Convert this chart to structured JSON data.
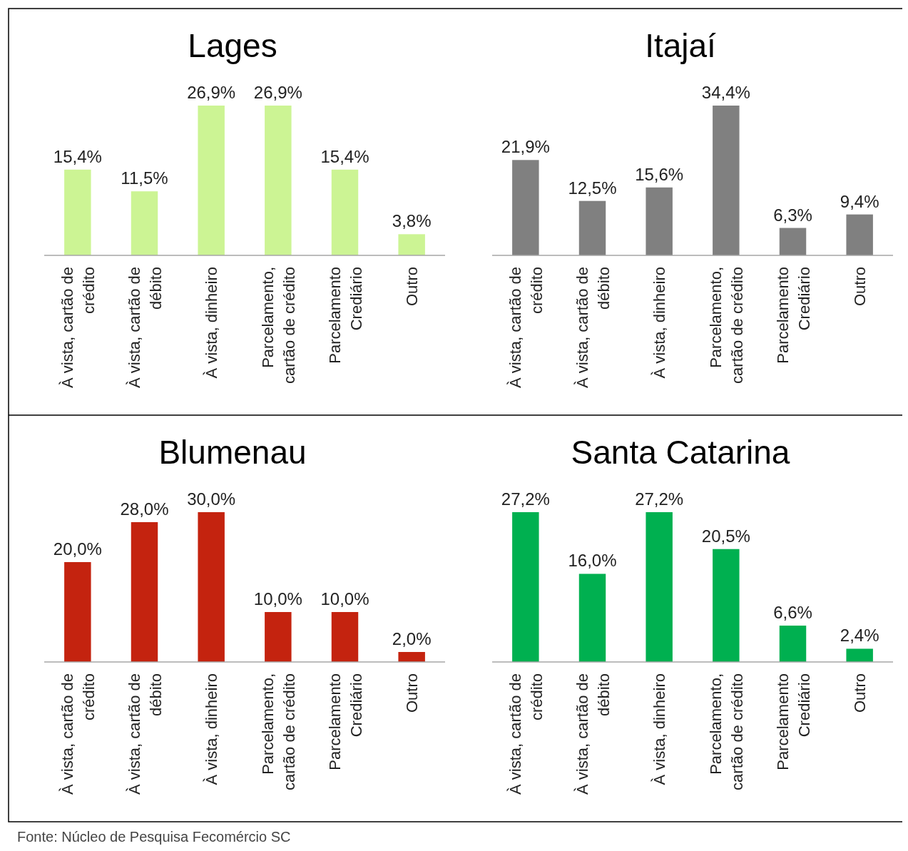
{
  "chart_data": [
    {
      "type": "bar",
      "title": "Lages",
      "categories": [
        "À vista, cartão de crédito",
        "À vista, cartão de débito",
        "À vista, dinheiro",
        "Parcelamento, cartão de crédito",
        "Parcelamento Crediário",
        "Outro"
      ],
      "values": [
        15.4,
        11.5,
        26.9,
        26.9,
        15.4,
        3.8
      ],
      "value_labels": [
        "15,4%",
        "11,5%",
        "26,9%",
        "26,9%",
        "15,4%",
        "3,8%"
      ],
      "color": "#ccf494"
    },
    {
      "type": "bar",
      "title": "Itajaí",
      "categories": [
        "À vista, cartão de crédito",
        "À vista, cartão de débito",
        "À vista, dinheiro",
        "Parcelamento, cartão de crédito",
        "Parcelamento Crediário",
        "Outro"
      ],
      "values": [
        21.9,
        12.5,
        15.6,
        34.4,
        6.3,
        9.4
      ],
      "value_labels": [
        "21,9%",
        "12,5%",
        "15,6%",
        "34,4%",
        "6,3%",
        "9,4%"
      ],
      "color": "#808080"
    },
    {
      "type": "bar",
      "title": "Blumenau",
      "categories": [
        "À vista, cartão de crédito",
        "À vista, cartão de débito",
        "À vista, dinheiro",
        "Parcelamento, cartão de crédito",
        "Parcelamento Crediário",
        "Outro"
      ],
      "values": [
        20.0,
        28.0,
        30.0,
        10.0,
        10.0,
        2.0
      ],
      "value_labels": [
        "20,0%",
        "28,0%",
        "30,0%",
        "10,0%",
        "10,0%",
        "2,0%"
      ],
      "color": "#c4230f",
      "annotations": [
        "Fonte: Núcleo de Pesquisa Fecomércio SC"
      ]
    },
    {
      "type": "bar",
      "title": "Santa Catarina",
      "categories": [
        "À vista, cartão de crédito",
        "À vista, cartão de débito",
        "À vista, dinheiro",
        "Parcelamento, cartão de crédito",
        "Parcelamento Crediário",
        "Outro"
      ],
      "values": [
        27.2,
        16.0,
        27.2,
        20.5,
        6.6,
        2.4
      ],
      "value_labels": [
        "27,2%",
        "16,0%",
        "27,2%",
        "20,5%",
        "6,6%",
        "2,4%"
      ],
      "color": "#00b050"
    }
  ]
}
